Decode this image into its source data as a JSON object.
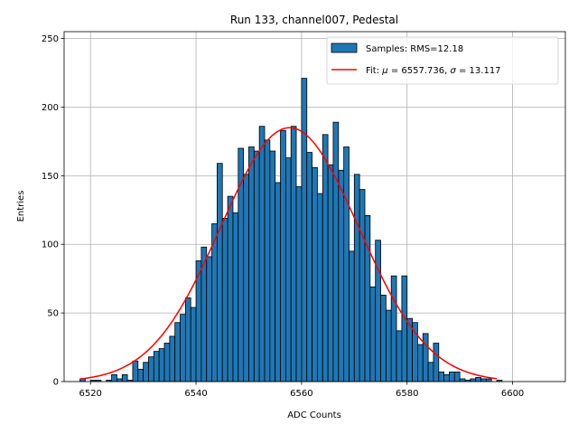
{
  "chart_data": {
    "type": "bar",
    "title": "Run 133, channel007, Pedestal",
    "xlabel": "ADC Counts",
    "ylabel": "Entries",
    "xlim": [
      6515,
      6610
    ],
    "ylim": [
      0,
      255
    ],
    "xticks": [
      6520,
      6540,
      6560,
      6580,
      6600
    ],
    "yticks": [
      0,
      50,
      100,
      150,
      200,
      250
    ],
    "grid": true,
    "legend_position": "top-right",
    "colors": {
      "bars": "#1f77b4",
      "bar_edge": "#000000",
      "fit": "#ff0000",
      "grid": "#b0b0b0"
    },
    "histogram": {
      "name": "Samples: RMS=12.18",
      "bin_start": 6518,
      "bin_width": 1,
      "counts": [
        2,
        0,
        1,
        1,
        0,
        1,
        5,
        2,
        5,
        1,
        15,
        9,
        14,
        18,
        22,
        24,
        28,
        33,
        43,
        49,
        61,
        54,
        88,
        98,
        91,
        115,
        159,
        119,
        135,
        123,
        170,
        151,
        171,
        168,
        186,
        176,
        168,
        145,
        183,
        163,
        186,
        142,
        221,
        167,
        156,
        137,
        180,
        158,
        189,
        154,
        171,
        95,
        151,
        140,
        121,
        69,
        103,
        63,
        52,
        77,
        37,
        77,
        46,
        43,
        27,
        35,
        14,
        28,
        7,
        5,
        7,
        7,
        2,
        1,
        2,
        3,
        2,
        2,
        0,
        1
      ]
    },
    "fit": {
      "name": "Fit: μ = 6557.736, σ = 13.117",
      "legend_prefix": "Fit: ",
      "mu_label": "μ",
      "mu_text": " = 6557.736, ",
      "sigma_label": "σ",
      "sigma_text": " = 13.117",
      "mu": 6557.736,
      "sigma": 13.117,
      "amplitude": 185,
      "range": [
        6518,
        6597
      ]
    }
  }
}
